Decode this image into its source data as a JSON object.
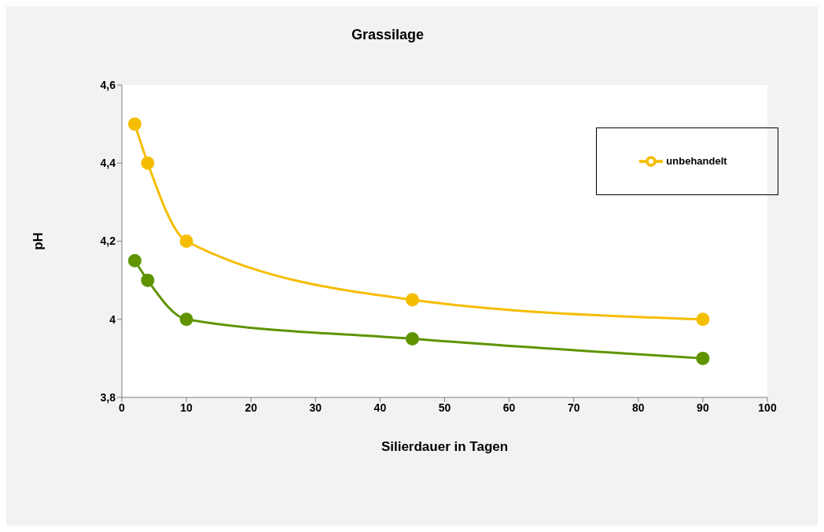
{
  "chart_data": {
    "type": "line",
    "title": "Grassilage",
    "xlabel": "Silierdauer in Tagen",
    "ylabel": "pH",
    "x": [
      2,
      4,
      10,
      45,
      90
    ],
    "series": [
      {
        "name": "unbehandelt",
        "color": "#f5bd00",
        "values": [
          4.5,
          4.4,
          4.2,
          4.05,
          4.0
        ]
      },
      {
        "color": "#5f9400",
        "values": [
          4.15,
          4.1,
          4.0,
          3.95,
          3.9
        ]
      }
    ],
    "xlim": [
      0,
      100
    ],
    "xticks": [
      0,
      10,
      20,
      30,
      40,
      50,
      60,
      70,
      80,
      90,
      100
    ],
    "ylim": [
      3.8,
      4.6
    ],
    "yticks": [
      {
        "value": 3.8,
        "label": "3,8"
      },
      4,
      {
        "value": 4.2,
        "label": "4,2"
      },
      {
        "value": 4.4,
        "label": "4,4"
      },
      {
        "value": 4.6,
        "label": "4,6"
      }
    ],
    "grid": false,
    "legend": "top right",
    "marker": "circle",
    "line_style": "solid"
  }
}
